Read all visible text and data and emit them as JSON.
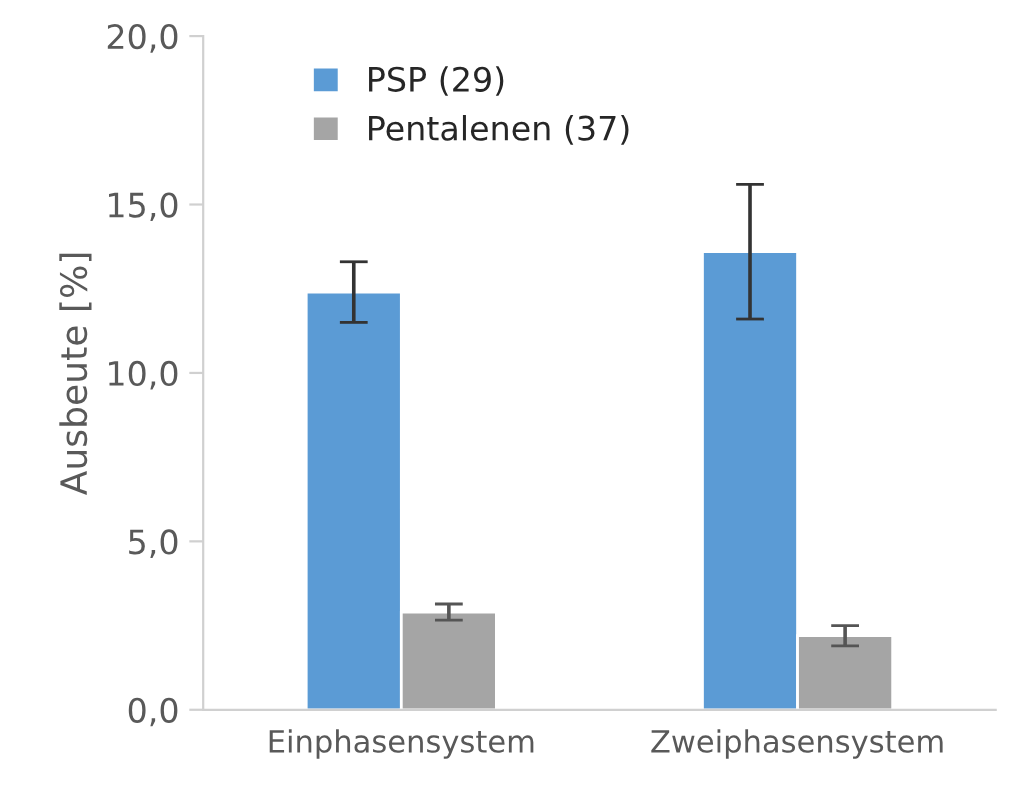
{
  "chart_data": {
    "type": "bar",
    "ylabel": "Ausbeute [%]",
    "categories": [
      "Einphasensystem",
      "Zweiphasensystem"
    ],
    "series": [
      {
        "name": "PSP (29)",
        "color": "#5b9bd5",
        "values": [
          12.4,
          13.6
        ],
        "errors": [
          0.9,
          2.0
        ]
      },
      {
        "name": "Pentalenen (37)",
        "color": "#a5a5a5",
        "values": [
          2.9,
          2.2
        ],
        "errors": [
          0.24,
          0.3
        ]
      }
    ],
    "ylim": [
      0,
      20
    ],
    "yticks": [
      {
        "value": 0,
        "label": "0,0"
      },
      {
        "value": 5,
        "label": "5,0"
      },
      {
        "value": 10,
        "label": "10,0"
      },
      {
        "value": 15,
        "label": "15,0"
      },
      {
        "value": 20,
        "label": "20,0"
      }
    ],
    "grid": false,
    "legend": "top left"
  }
}
